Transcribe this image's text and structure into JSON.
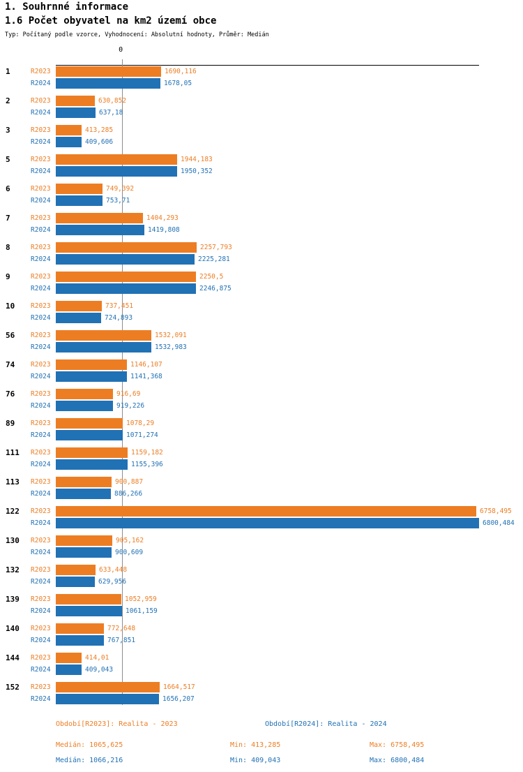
{
  "header": {
    "section_title": "1. Souhrnné informace",
    "chart_title": "1.6 Počet obyvatel na km2 území obce",
    "meta": "Typ: Počítaný podle vzorce, Vyhodnocení: Absolutní hodnoty, Průměr: Medián"
  },
  "axis": {
    "zero_tick": "0"
  },
  "colors": {
    "r2023": "#ED7D23",
    "r2024": "#2171B5",
    "median_line": "#8C8C8C",
    "axis": "#000000"
  },
  "chart_data": {
    "type": "bar",
    "orientation": "horizontal",
    "title": "1.6 Počet obyvatel na km2 území obce",
    "categories": [
      "1",
      "2",
      "3",
      "5",
      "6",
      "7",
      "8",
      "9",
      "10",
      "56",
      "74",
      "76",
      "89",
      "111",
      "113",
      "122",
      "130",
      "132",
      "139",
      "140",
      "144",
      "152"
    ],
    "series": [
      {
        "name": "R2023",
        "color": "#ED7D23",
        "values": [
          1690.116,
          630.852,
          413.285,
          1944.183,
          749.392,
          1404.293,
          2257.793,
          2250.5,
          737.451,
          1532.091,
          1146.107,
          916.69,
          1078.29,
          1159.182,
          900.887,
          6758.495,
          905.162,
          633.448,
          1052.959,
          772.648,
          414.01,
          1664.517
        ],
        "labels": [
          "1690,116",
          "630,852",
          "413,285",
          "1944,183",
          "749,392",
          "1404,293",
          "2257,793",
          "2250,5",
          "737,451",
          "1532,091",
          "1146,107",
          "916,69",
          "1078,29",
          "1159,182",
          "900,887",
          "6758,495",
          "905,162",
          "633,448",
          "1052,959",
          "772,648",
          "414,01",
          "1664,517"
        ]
      },
      {
        "name": "R2024",
        "color": "#2171B5",
        "values": [
          1678.05,
          637.18,
          409.606,
          1950.352,
          753.71,
          1419.808,
          2225.281,
          2246.875,
          724.893,
          1532.983,
          1141.368,
          919.226,
          1071.274,
          1155.396,
          886.266,
          6800.484,
          900.609,
          629.956,
          1061.159,
          767.851,
          409.043,
          1656.207
        ],
        "labels": [
          "1678,05",
          "637,18",
          "409,606",
          "1950,352",
          "753,71",
          "1419,808",
          "2225,281",
          "2246,875",
          "724,893",
          "1532,983",
          "1141,368",
          "919,226",
          "1071,274",
          "1155,396",
          "886,266",
          "6800,484",
          "900,609",
          "629,956",
          "1061,159",
          "767,851",
          "409,043",
          "1656,207"
        ]
      }
    ],
    "xlim": [
      0,
      6800.484
    ],
    "median_line": 1065.625,
    "legend_position": "bottom",
    "grid": false
  },
  "legend": {
    "r2023": "Období[R2023]: Realita - 2023",
    "r2024": "Období[R2024]: Realita - 2024"
  },
  "stats": {
    "r2023": {
      "median": "Medián: 1065,625",
      "min": "Min: 413,285",
      "max": "Max: 6758,495"
    },
    "r2024": {
      "median": "Medián: 1066,216",
      "min": "Min: 409,043",
      "max": "Max: 6800,484"
    }
  }
}
